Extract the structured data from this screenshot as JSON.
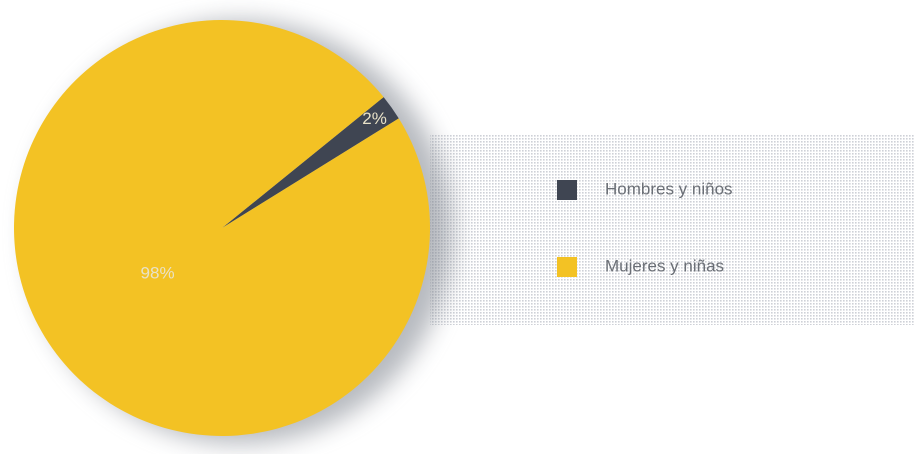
{
  "chart_data": {
    "type": "pie",
    "categories": [
      "Hombres y niños",
      "Mujeres y niñas"
    ],
    "values": [
      2,
      98
    ],
    "value_labels": [
      "2%",
      "98%"
    ],
    "colors": [
      "#3f4552",
      "#f3c224"
    ]
  }
}
